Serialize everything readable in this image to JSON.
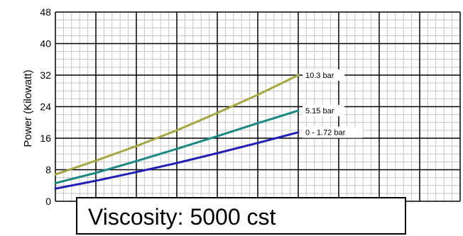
{
  "chart_data": {
    "type": "line",
    "title": "",
    "xlabel": "",
    "ylabel": "Power (Kilowatt)",
    "ylim": [
      0,
      48
    ],
    "yticks": [
      0,
      8,
      16,
      24,
      32,
      40,
      48
    ],
    "xlim": [
      0,
      10
    ],
    "grid": true,
    "annotation": "Viscosity: 5000 cst",
    "series": [
      {
        "name": "10.3 bar",
        "color": "#a6a640",
        "x": [
          0,
          1,
          2,
          3,
          4,
          5,
          6
        ],
        "y": [
          6.8,
          10.3,
          14.0,
          18.0,
          22.4,
          27.0,
          32.0
        ]
      },
      {
        "name": "5.15 bar",
        "color": "#1a8a80",
        "x": [
          0,
          1,
          2,
          3,
          4,
          5,
          6
        ],
        "y": [
          4.6,
          7.2,
          10.2,
          13.3,
          16.5,
          19.8,
          23.0
        ]
      },
      {
        "name": "0 - 1.72 bar",
        "color": "#2020b8",
        "x": [
          0,
          1,
          2,
          3,
          4,
          5,
          6
        ],
        "y": [
          3.2,
          5.2,
          7.4,
          9.7,
          12.2,
          14.8,
          17.5
        ]
      }
    ]
  }
}
